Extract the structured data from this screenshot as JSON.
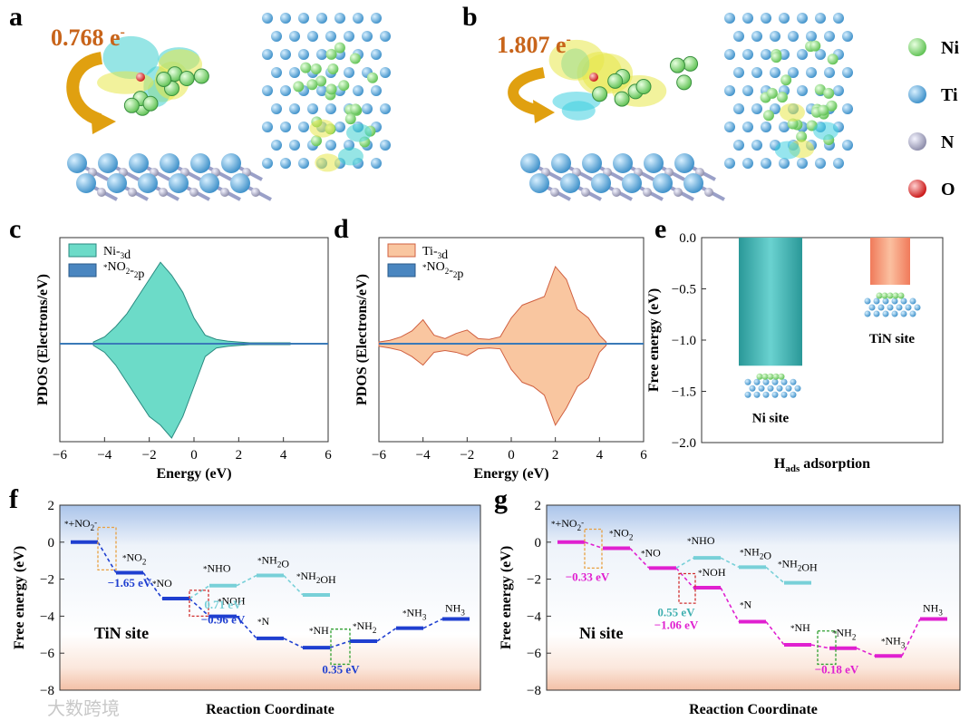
{
  "panels": {
    "a": {
      "letter": "a",
      "charge": "0.768 e",
      "charge_sup": "-"
    },
    "b": {
      "letter": "b",
      "charge": "1.807 e",
      "charge_sup": "-"
    },
    "c": {
      "letter": "c"
    },
    "d": {
      "letter": "d"
    },
    "e": {
      "letter": "e"
    },
    "f": {
      "letter": "f"
    },
    "g": {
      "letter": "g"
    }
  },
  "atom_legend": [
    {
      "name": "Ni",
      "color": "#8fe08a"
    },
    {
      "name": "Ti",
      "color": "#4fb0e0"
    },
    {
      "name": "N",
      "color": "#a8a8c8"
    },
    {
      "name": "O",
      "color": "#e02020"
    }
  ],
  "watermark": "大数跨境",
  "chart_data": [
    {
      "id": "c",
      "type": "area",
      "xlabel": "Energy (eV)",
      "ylabel": "PDOS (Electrons/eV)",
      "xlim": [
        -6,
        6
      ],
      "xticks": [
        "−6",
        "−4",
        "−2",
        "0",
        "2",
        "4",
        "6"
      ],
      "series": [
        {
          "name": "Ni-3d",
          "color": "#6cdbc8",
          "edge": "#2a8a80",
          "x": [
            -4.5,
            -4,
            -3.5,
            -3,
            -2.5,
            -2,
            -1.5,
            -1,
            -0.5,
            0,
            0.5,
            1,
            1.5,
            2,
            2.5,
            4.3
          ],
          "up": [
            0.02,
            0.08,
            0.2,
            0.35,
            0.55,
            0.75,
            0.95,
            0.8,
            0.6,
            0.3,
            0.1,
            0.05,
            0.03,
            0.02,
            0.01,
            0.01
          ],
          "down": [
            -0.02,
            -0.1,
            -0.25,
            -0.45,
            -0.65,
            -0.85,
            -0.95,
            -1.1,
            -0.85,
            -0.5,
            -0.15,
            -0.05,
            -0.03,
            -0.02,
            -0.01,
            -0.01
          ]
        },
        {
          "name": "*NO2-2p",
          "color": "#4a86c0",
          "edge": "#2a5a8a"
        }
      ]
    },
    {
      "id": "d",
      "type": "area",
      "xlabel": "Energy (eV)",
      "ylabel": "PDOS (Electrons/eV)",
      "xlim": [
        -6,
        6
      ],
      "xticks": [
        "−6",
        "−4",
        "−2",
        "0",
        "2",
        "4",
        "6"
      ],
      "series": [
        {
          "name": "Ti-3d",
          "color": "#f9c6a0",
          "edge": "#d06040",
          "x": [
            -6,
            -5.5,
            -5,
            -4.5,
            -4,
            -3.5,
            -3,
            -2.5,
            -2,
            -1.5,
            -1,
            -0.5,
            0,
            0.5,
            1,
            1.5,
            2,
            2.5,
            3,
            3.5,
            4,
            4.3
          ],
          "up": [
            0.02,
            0.04,
            0.08,
            0.15,
            0.28,
            0.1,
            0.06,
            0.12,
            0.16,
            0.06,
            0.05,
            0.08,
            0.3,
            0.45,
            0.5,
            0.55,
            0.9,
            0.75,
            0.4,
            0.3,
            0.1,
            0.02
          ],
          "down": [
            -0.03,
            -0.05,
            -0.08,
            -0.15,
            -0.25,
            -0.1,
            -0.08,
            -0.1,
            -0.14,
            -0.06,
            -0.05,
            -0.06,
            -0.3,
            -0.45,
            -0.5,
            -0.6,
            -0.95,
            -0.75,
            -0.5,
            -0.4,
            -0.1,
            -0.02
          ]
        },
        {
          "name": "*NO2-2p",
          "color": "#4a86c0",
          "edge": "#2a5a8a"
        }
      ]
    },
    {
      "id": "e",
      "type": "bar",
      "xlabel": "H",
      "xlabel_sub": "ads",
      "xlabel_rest": " adsorption",
      "ylabel": "Free energy (eV)",
      "ylim": [
        -2.0,
        0.0
      ],
      "yticks": [
        "0.0",
        "−0.5",
        "−1.0",
        "−1.5",
        "−2.0"
      ],
      "categories": [
        "Ni site",
        "TiN site"
      ],
      "values": [
        -1.25,
        -0.46
      ],
      "colors": [
        "#3aa8a8",
        "#f28a6a"
      ]
    },
    {
      "id": "f",
      "type": "line",
      "title": "TiN site",
      "xlabel": "Reaction Coordinate",
      "ylabel": "Free energy (eV)",
      "ylim": [
        -8,
        2
      ],
      "yticks": [
        "2",
        "0",
        "−2",
        "−4",
        "−6",
        "−8"
      ],
      "series": [
        {
          "name": "main",
          "color": "#1f3fd0",
          "steps": [
            {
              "label": "*+NO2-",
              "y": 0.0
            },
            {
              "label": "*NO2",
              "y": -1.65
            },
            {
              "label": "*NO",
              "y": -3.05
            },
            {
              "label": "*NOH",
              "y": -4.01
            },
            {
              "label": "*N",
              "y": -5.2
            },
            {
              "label": "*NH",
              "y": -5.7
            },
            {
              "label": "*NH2",
              "y": -5.35
            },
            {
              "label": "*NH3",
              "y": -4.65
            },
            {
              "label": "NH3",
              "y": -4.15
            }
          ]
        },
        {
          "name": "branch",
          "color": "#78d0d8",
          "steps": [
            {
              "label": "*NHO",
              "y": -2.35
            },
            {
              "label": "*NH2O",
              "y": -1.8
            },
            {
              "label": "*NH2OH",
              "y": -2.85
            }
          ]
        }
      ],
      "annotations": [
        "−1.65 eV",
        "0.71 eV",
        "−0.96 eV",
        "0.35 eV"
      ]
    },
    {
      "id": "g",
      "type": "line",
      "title": "Ni site",
      "xlabel": "Reaction Coordinate",
      "ylabel": "Free energy (eV)",
      "ylim": [
        -8,
        2
      ],
      "yticks": [
        "2",
        "0",
        "−2",
        "−4",
        "−6",
        "−8"
      ],
      "series": [
        {
          "name": "main",
          "color": "#e020d0",
          "steps": [
            {
              "label": "*+NO2-",
              "y": 0.0
            },
            {
              "label": "*NO2",
              "y": -0.33
            },
            {
              "label": "*NO",
              "y": -1.4
            },
            {
              "label": "*NOH",
              "y": -2.46
            },
            {
              "label": "*N",
              "y": -4.3
            },
            {
              "label": "*NH",
              "y": -5.55
            },
            {
              "label": "*NH2",
              "y": -5.73
            },
            {
              "label": "*NH3",
              "y": -6.15
            },
            {
              "label": "NH3",
              "y": -4.15
            }
          ]
        },
        {
          "name": "branch",
          "color": "#78d0d8",
          "steps": [
            {
              "label": "*NHO",
              "y": -0.85
            },
            {
              "label": "*NH2O",
              "y": -1.35
            },
            {
              "label": "*NH2OH",
              "y": -2.2
            }
          ]
        }
      ],
      "annotations": [
        "−0.33 eV",
        "0.55 eV",
        "−1.06 eV",
        "−0.18 eV"
      ]
    }
  ]
}
